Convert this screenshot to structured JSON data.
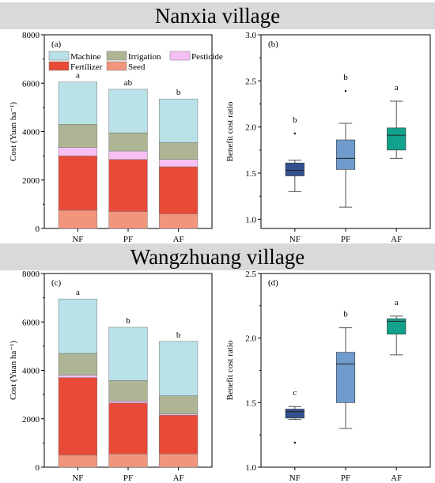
{
  "banners": {
    "top": "Nanxia village",
    "bottom": "Wangzhuang village"
  },
  "colors": {
    "machine": "#b8e1e8",
    "irrigation": "#aeb595",
    "pesticide": "#f7c0f5",
    "fertilizer": "#e84a38",
    "seed": "#f1957d",
    "box_nf": "#34508f",
    "box_pf": "#6f9ccc",
    "box_af": "#12a28c"
  },
  "chart_data": [
    {
      "panel": "(a)",
      "type": "bar",
      "stacked": true,
      "categories": [
        "NF",
        "PF",
        "AF"
      ],
      "ylabel": "Cost (Yuan ha⁻¹)",
      "ylim": [
        0,
        8000
      ],
      "yticks": [
        "0",
        "2000",
        "4000",
        "6000",
        "8000"
      ],
      "legend": [
        "Machine",
        "Irrigation",
        "Pesticide",
        "Fertilizer",
        "Seed"
      ],
      "legend_position": "top-left",
      "series": [
        {
          "name": "Seed",
          "values": [
            750,
            700,
            600
          ]
        },
        {
          "name": "Fertilizer",
          "values": [
            2250,
            2150,
            1950
          ]
        },
        {
          "name": "Pesticide",
          "values": [
            350,
            350,
            300
          ]
        },
        {
          "name": "Irrigation",
          "values": [
            950,
            750,
            700
          ]
        },
        {
          "name": "Machine",
          "values": [
            1750,
            1800,
            1800
          ]
        }
      ],
      "annotations": [
        "a",
        "ab",
        "b"
      ]
    },
    {
      "panel": "(b)",
      "type": "box",
      "categories": [
        "NF",
        "PF",
        "AF"
      ],
      "ylabel": "Benefit cost ratio",
      "ylim": [
        0.9,
        3.0
      ],
      "yticks": [
        "1.0",
        "1.5",
        "2.0",
        "2.5",
        "3.0"
      ],
      "boxes": [
        {
          "min": 1.3,
          "q1": 1.47,
          "median": 1.53,
          "q3": 1.61,
          "max": 1.64,
          "outliers": [
            1.93
          ]
        },
        {
          "min": 1.13,
          "q1": 1.54,
          "median": 1.66,
          "q3": 1.86,
          "max": 2.04,
          "outliers": [
            2.39
          ]
        },
        {
          "min": 1.66,
          "q1": 1.75,
          "median": 1.91,
          "q3": 1.99,
          "max": 2.28,
          "outliers": []
        }
      ],
      "annotations": [
        "b",
        "b",
        "a"
      ]
    },
    {
      "panel": "(c)",
      "type": "bar",
      "stacked": true,
      "categories": [
        "NF",
        "PF",
        "AF"
      ],
      "ylabel": "Cost (Yuan ha⁻¹)",
      "ylim": [
        0,
        8000
      ],
      "yticks": [
        "0",
        "2000",
        "4000",
        "6000",
        "8000"
      ],
      "series": [
        {
          "name": "Seed",
          "values": [
            500,
            550,
            550
          ]
        },
        {
          "name": "Fertilizer",
          "values": [
            3200,
            2100,
            1600
          ]
        },
        {
          "name": "Pesticide",
          "values": [
            100,
            80,
            50
          ]
        },
        {
          "name": "Irrigation",
          "values": [
            900,
            850,
            750
          ]
        },
        {
          "name": "Machine",
          "values": [
            2250,
            2200,
            2250
          ]
        }
      ],
      "annotations": [
        "a",
        "b",
        "b"
      ]
    },
    {
      "panel": "(d)",
      "type": "box",
      "categories": [
        "NF",
        "PF",
        "AF"
      ],
      "ylabel": "Benefit cost ratio",
      "ylim": [
        1.0,
        2.5
      ],
      "yticks": [
        "1.0",
        "1.5",
        "2.0",
        "2.5"
      ],
      "boxes": [
        {
          "min": 1.37,
          "q1": 1.38,
          "median": 1.43,
          "q3": 1.45,
          "max": 1.47,
          "outliers": [
            1.19
          ]
        },
        {
          "min": 1.3,
          "q1": 1.5,
          "median": 1.8,
          "q3": 1.89,
          "max": 2.08,
          "outliers": []
        },
        {
          "min": 1.87,
          "q1": 2.03,
          "median": 2.13,
          "q3": 2.15,
          "max": 2.17,
          "outliers": []
        }
      ],
      "annotations": [
        "c",
        "b",
        "a"
      ]
    }
  ]
}
